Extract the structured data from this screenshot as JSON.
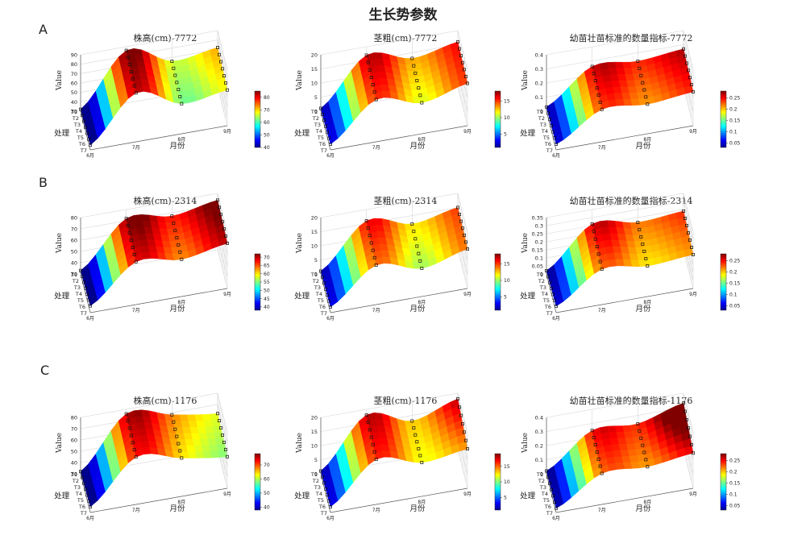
{
  "figure": {
    "title": "生长势参数",
    "row_labels": [
      "A",
      "B",
      "C"
    ]
  },
  "colormap": [
    "#00008f",
    "#0000ff",
    "#0080ff",
    "#00ffff",
    "#80ff80",
    "#ffff00",
    "#ff8000",
    "#ff0000",
    "#800000"
  ],
  "chart_data": [
    {
      "type": "surface",
      "row": 0,
      "col": 0,
      "title": "株高(cm)-7772",
      "zlabel": "Value",
      "xlabel": "月份",
      "ylabel": "处理",
      "x": [
        "6月",
        "7月",
        "8月",
        "9月"
      ],
      "y": [
        "T1",
        "T2",
        "T3",
        "T4",
        "T5",
        "T6",
        "T7"
      ],
      "zlim": [
        30,
        90
      ],
      "zticks": [
        30,
        40,
        50,
        60,
        70,
        80,
        90
      ],
      "colorbar": {
        "range": [
          40,
          85
        ],
        "ticks": [
          40,
          50,
          60,
          70,
          80
        ]
      },
      "z_front": [
        32,
        86,
        66,
        72
      ],
      "z_back": [
        35,
        82,
        62,
        68
      ]
    },
    {
      "type": "surface",
      "row": 0,
      "col": 1,
      "title": "茎粗(cm)-7772",
      "zlabel": "Value",
      "xlabel": "月份",
      "ylabel": "处理",
      "x": [
        "6月",
        "7月",
        "8月",
        "9月"
      ],
      "y": [
        "T1",
        "T2",
        "T3",
        "T4",
        "T5",
        "T6",
        "T7"
      ],
      "zlim": [
        0,
        20
      ],
      "zticks": [
        0,
        5,
        10,
        15,
        20
      ],
      "colorbar": {
        "range": [
          1,
          18
        ],
        "ticks": [
          5,
          10,
          15
        ]
      },
      "z_front": [
        1,
        17,
        13,
        16
      ],
      "z_back": [
        2,
        15,
        11,
        15
      ]
    },
    {
      "type": "surface",
      "row": 0,
      "col": 2,
      "title": "幼苗壮苗标准的数量指标-7772",
      "zlabel": "Value",
      "xlabel": "月份",
      "ylabel": "处理",
      "x": [
        "6月",
        "7月",
        "8月",
        "9月"
      ],
      "y": [
        "T1",
        "T2",
        "T3",
        "T4",
        "T5",
        "T6",
        "T7"
      ],
      "zlim": [
        0,
        0.4
      ],
      "zticks": [
        0,
        0.1,
        0.2,
        0.3,
        0.4
      ],
      "colorbar": {
        "range": [
          0.03,
          0.28
        ],
        "ticks": [
          0.05,
          0.1,
          0.15,
          0.2,
          0.25
        ]
      },
      "z_front": [
        0.03,
        0.26,
        0.24,
        0.27
      ],
      "z_back": [
        0.04,
        0.23,
        0.21,
        0.24
      ]
    },
    {
      "type": "surface",
      "row": 1,
      "col": 0,
      "title": "株高(cm)-2314",
      "zlabel": "Value",
      "xlabel": "月份",
      "ylabel": "处理",
      "x": [
        "6月",
        "7月",
        "8月",
        "9月"
      ],
      "y": [
        "T1",
        "T2",
        "T3",
        "T4",
        "T5",
        "T6",
        "T7"
      ],
      "zlim": [
        30,
        80
      ],
      "zticks": [
        30,
        40,
        50,
        60,
        70,
        80
      ],
      "colorbar": {
        "range": [
          38,
          72
        ],
        "ticks": [
          40,
          45,
          50,
          55,
          60,
          65,
          70
        ]
      },
      "z_front": [
        33,
        72,
        67,
        74
      ],
      "z_back": [
        36,
        68,
        63,
        70
      ]
    },
    {
      "type": "surface",
      "row": 1,
      "col": 1,
      "title": "茎粗(cm)-2314",
      "zlabel": "Value",
      "xlabel": "月份",
      "ylabel": "处理",
      "x": [
        "6月",
        "7月",
        "8月",
        "9月"
      ],
      "y": [
        "T1",
        "T2",
        "T3",
        "T4",
        "T5",
        "T6",
        "T7"
      ],
      "zlim": [
        0,
        20
      ],
      "zticks": [
        0,
        5,
        10,
        15,
        20
      ],
      "colorbar": {
        "range": [
          1,
          18
        ],
        "ticks": [
          5,
          10,
          15
        ]
      },
      "z_front": [
        1,
        16,
        12,
        15
      ],
      "z_back": [
        2,
        14,
        10,
        14
      ]
    },
    {
      "type": "surface",
      "row": 1,
      "col": 2,
      "title": "幼苗壮苗标准的数量指标-2314",
      "zlabel": "Value",
      "xlabel": "月份",
      "ylabel": "处理",
      "x": [
        "6月",
        "7月",
        "8月",
        "9月"
      ],
      "y": [
        "T1",
        "T2",
        "T3",
        "T4",
        "T5",
        "T6",
        "T7"
      ],
      "zlim": [
        0,
        0.35
      ],
      "zticks": [
        0,
        0.05,
        0.1,
        0.15,
        0.2,
        0.25,
        0.3,
        0.35
      ],
      "colorbar": {
        "range": [
          0.03,
          0.28
        ],
        "ticks": [
          0.05,
          0.1,
          0.15,
          0.2,
          0.25
        ]
      },
      "z_front": [
        0.02,
        0.26,
        0.22,
        0.24
      ],
      "z_back": [
        0.04,
        0.22,
        0.19,
        0.21
      ]
    },
    {
      "type": "surface",
      "row": 2,
      "col": 0,
      "title": "株高(cm)-1176",
      "zlabel": "Value",
      "xlabel": "月份",
      "ylabel": "处理",
      "x": [
        "6月",
        "7月",
        "8月",
        "9月"
      ],
      "y": [
        "T1",
        "T2",
        "T3",
        "T4",
        "T5",
        "T6",
        "T7"
      ],
      "zlim": [
        30,
        80
      ],
      "zticks": [
        30,
        40,
        50,
        60,
        70,
        80
      ],
      "colorbar": {
        "range": [
          38,
          78
        ],
        "ticks": [
          40,
          50,
          60,
          70
        ]
      },
      "z_front": [
        32,
        76,
        68,
        62
      ],
      "z_back": [
        35,
        72,
        64,
        58
      ]
    },
    {
      "type": "surface",
      "row": 2,
      "col": 1,
      "title": "茎粗(cm)-1176",
      "zlabel": "Value",
      "xlabel": "月份",
      "ylabel": "处理",
      "x": [
        "6月",
        "7月",
        "8月",
        "9月"
      ],
      "y": [
        "T1",
        "T2",
        "T3",
        "T4",
        "T5",
        "T6",
        "T7"
      ],
      "zlim": [
        0,
        20
      ],
      "zticks": [
        0,
        5,
        10,
        15,
        20
      ],
      "colorbar": {
        "range": [
          1,
          19
        ],
        "ticks": [
          5,
          10,
          15
        ]
      },
      "z_front": [
        1,
        18,
        13,
        18
      ],
      "z_back": [
        2,
        16,
        12,
        14
      ]
    },
    {
      "type": "surface",
      "row": 2,
      "col": 2,
      "title": "幼苗壮苗标准的数量指标-1176",
      "zlabel": "Value",
      "xlabel": "月份",
      "ylabel": "处理",
      "x": [
        "6月",
        "7月",
        "8月",
        "9月"
      ],
      "y": [
        "T1",
        "T2",
        "T3",
        "T4",
        "T5",
        "T6",
        "T7"
      ],
      "zlim": [
        0,
        0.4
      ],
      "zticks": [
        0,
        0.1,
        0.2,
        0.3,
        0.4
      ],
      "colorbar": {
        "range": [
          0.03,
          0.28
        ],
        "ticks": [
          0.05,
          0.1,
          0.15,
          0.2,
          0.25
        ]
      },
      "z_front": [
        0.02,
        0.25,
        0.24,
        0.33
      ],
      "z_back": [
        0.03,
        0.22,
        0.21,
        0.25
      ]
    }
  ]
}
